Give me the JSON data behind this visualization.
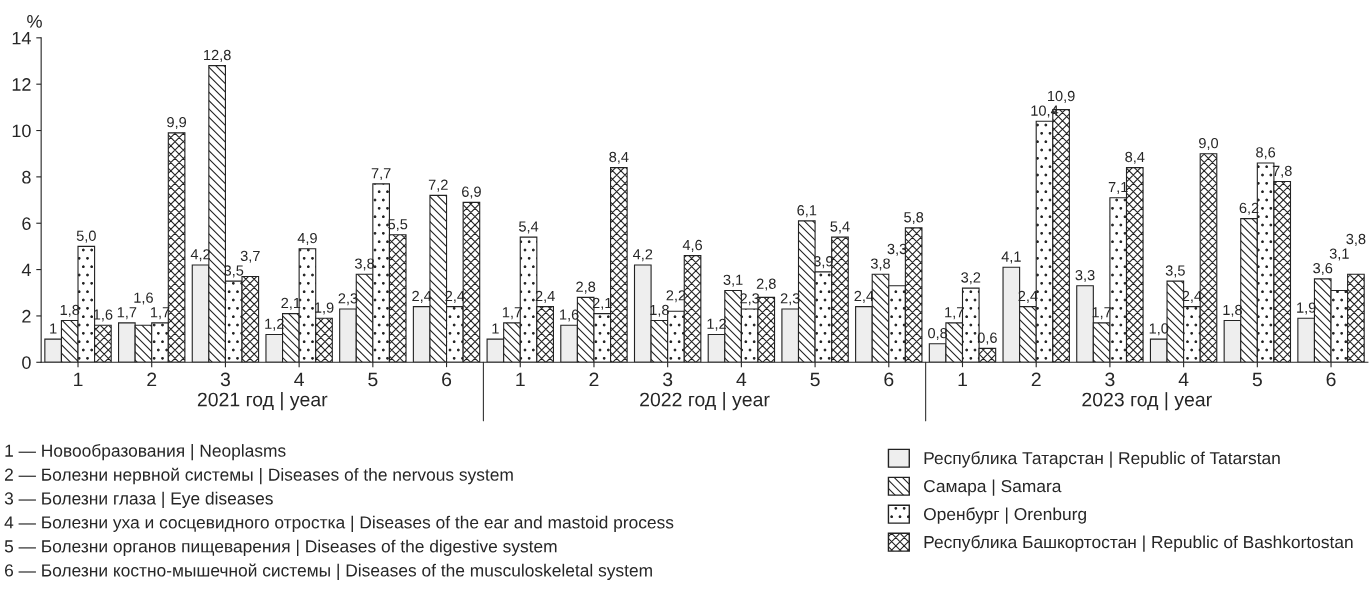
{
  "chart_data": {
    "type": "bar",
    "ylabel": "%",
    "categories": [
      "1",
      "2",
      "3",
      "4",
      "5",
      "6",
      "1",
      "2",
      "3",
      "4",
      "5",
      "6",
      "1",
      "2",
      "3",
      "4",
      "5",
      "6"
    ],
    "series": [
      {
        "name": "Республика Татарстан | Republic of Tatarstan",
        "color": "#eeeeee",
        "values": [
          1,
          1.7,
          4.2,
          1.2,
          2.3,
          2.4,
          1,
          1.6,
          4.2,
          1.2,
          2.3,
          2.4,
          0.8,
          4.1,
          3.3,
          1.0,
          1.8,
          1.9
        ],
        "value_labels": [
          "1",
          "1,7",
          "4,2",
          "1,2",
          "2,3",
          "2,4",
          "1",
          "1,6",
          "4,2",
          "1,2",
          "2,3",
          "2,4",
          "0,8",
          "4,1",
          "3,3",
          "1,0",
          "1,8",
          "1,9"
        ]
      },
      {
        "name": "Самара | Samara",
        "color": "#222222",
        "values": [
          1.8,
          1.6,
          12.8,
          2.1,
          3.8,
          7.2,
          1.7,
          2.8,
          1.8,
          3.1,
          6.1,
          3.8,
          1.7,
          2.4,
          1.7,
          3.5,
          6.2,
          3.6
        ],
        "value_labels": [
          "1,8",
          "1,6",
          "12,8",
          "2,1",
          "3,8",
          "7,2",
          "1,7",
          "2,8",
          "1,8",
          "3,1",
          "6,1",
          "3,8",
          "1,7",
          "2,4",
          "1,7",
          "3,5",
          "6,2",
          "3,6"
        ]
      },
      {
        "name": "Оренбург | Orenburg",
        "color": "#222222",
        "values": [
          5.0,
          1.7,
          3.5,
          4.9,
          7.7,
          2.4,
          5.4,
          2.1,
          2.2,
          2.3,
          3.9,
          3.3,
          3.2,
          10.4,
          7.1,
          2.4,
          8.6,
          3.1
        ],
        "value_labels": [
          "5,0",
          "1,7",
          "3,5",
          "4,9",
          "7,7",
          "2,4",
          "5,4",
          "2,1",
          "2,2",
          "2,3",
          "3,9",
          "3,3",
          "3,2",
          "10,4",
          "7,1",
          "2,4",
          "8,6",
          "3,1"
        ]
      },
      {
        "name": "Республика Башкортостан | Republic of Bashkortostan",
        "color": "#222222",
        "values": [
          1.6,
          9.9,
          3.7,
          1.9,
          5.5,
          6.9,
          2.4,
          8.4,
          4.6,
          2.8,
          5.4,
          5.8,
          0.6,
          10.9,
          8.4,
          9.0,
          7.8,
          3.8
        ],
        "value_labels": [
          "1,6",
          "9,9",
          "3,7",
          "1,9",
          "5,5",
          "6,9",
          "2,4",
          "8,4",
          "4,6",
          "2,8",
          "5,4",
          "5,8",
          "0,6",
          "10,9",
          "8,4",
          "9,0",
          "7,8",
          "3,8"
        ]
      }
    ],
    "ylim": [
      0,
      14
    ],
    "yticks": [
      0,
      2,
      4,
      6,
      8,
      10,
      12,
      14
    ],
    "grid": false,
    "legend": "bottom right",
    "annotations": [
      "2021 год | year",
      "2022 год | year",
      "2023 год | year",
      "1 — Новообразования | Neoplasms",
      "2 — Болезни нервной системы | Diseases of the nervous system",
      "3 — Болезни глаза | Eye diseases",
      "4 — Болезни уха и сосцевидного отростка | Diseases of the ear and mastoid process",
      "5 — Болезни органов пищеварения | Diseases of the digestive system",
      "6 — Болезни костно-мышечной системы | Diseases of the musculoskeletal system"
    ]
  }
}
